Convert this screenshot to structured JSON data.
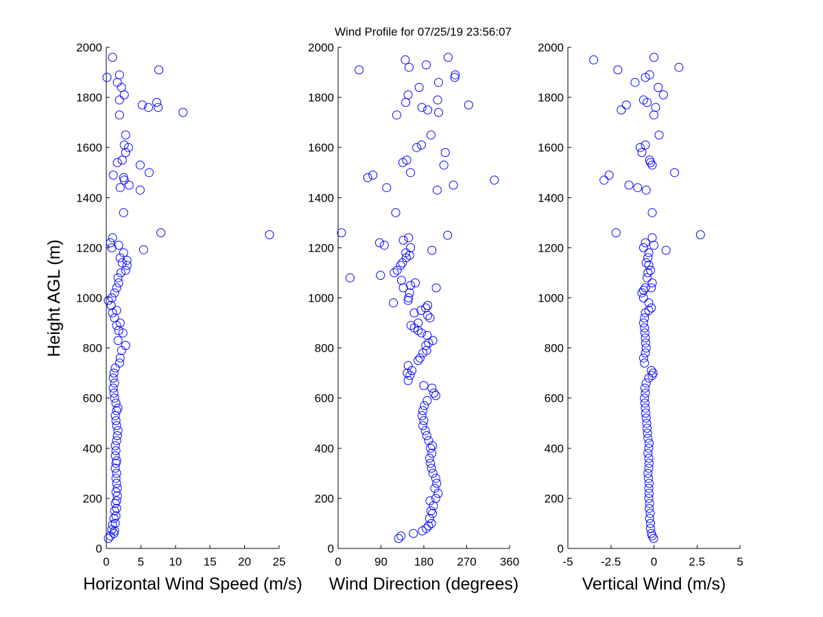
{
  "chart_data": [
    {
      "type": "scatter",
      "title": "Wind Profile for  07/25/19 23:56:07",
      "xlabel": "Horizontal Wind Speed (m/s)",
      "ylabel": "Height AGL (m)",
      "xlim": [
        0,
        25
      ],
      "ylim": [
        0,
        2000
      ],
      "xticks": [
        0,
        5,
        10,
        15,
        20,
        25
      ],
      "xtick_labels": [
        "0",
        "5",
        "10",
        "15",
        "20",
        "25"
      ],
      "yticks": [
        0,
        200,
        400,
        600,
        800,
        1000,
        1200,
        1400,
        1600,
        1800,
        2000
      ],
      "ytick_labels": [
        "0",
        "200",
        "400",
        "600",
        "800",
        "1000",
        "1200",
        "1400",
        "1600",
        "1800",
        "2000"
      ],
      "marker": "circle-open",
      "color": "#0000ff",
      "grid": false,
      "points": [
        [
          0.3,
          40
        ],
        [
          0.6,
          50
        ],
        [
          1.1,
          60
        ],
        [
          0.8,
          75
        ],
        [
          1.2,
          70
        ],
        [
          0.9,
          95
        ],
        [
          1.3,
          100
        ],
        [
          1.1,
          120
        ],
        [
          1.4,
          130
        ],
        [
          1.2,
          150
        ],
        [
          1.5,
          160
        ],
        [
          1.3,
          180
        ],
        [
          1.5,
          190
        ],
        [
          1.6,
          210
        ],
        [
          1.4,
          225
        ],
        [
          1.6,
          240
        ],
        [
          1.5,
          260
        ],
        [
          1.4,
          280
        ],
        [
          1.5,
          300
        ],
        [
          1.3,
          320
        ],
        [
          1.4,
          340
        ],
        [
          1.5,
          350
        ],
        [
          1.3,
          370
        ],
        [
          1.4,
          390
        ],
        [
          1.3,
          410
        ],
        [
          1.5,
          430
        ],
        [
          1.6,
          450
        ],
        [
          1.7,
          470
        ],
        [
          1.5,
          490
        ],
        [
          1.4,
          510
        ],
        [
          1.3,
          530
        ],
        [
          1.5,
          550
        ],
        [
          1.7,
          560
        ],
        [
          1.4,
          580
        ],
        [
          1.2,
          600
        ],
        [
          1.1,
          620
        ],
        [
          1.0,
          640
        ],
        [
          1.2,
          660
        ],
        [
          1.0,
          680
        ],
        [
          1.1,
          700
        ],
        [
          1.3,
          720
        ],
        [
          1.9,
          740
        ],
        [
          2.0,
          760
        ],
        [
          2.2,
          790
        ],
        [
          2.8,
          810
        ],
        [
          1.7,
          830
        ],
        [
          2.4,
          860
        ],
        [
          1.8,
          870
        ],
        [
          1.5,
          890
        ],
        [
          2.0,
          900
        ],
        [
          1.2,
          920
        ],
        [
          0.9,
          940
        ],
        [
          1.5,
          950
        ],
        [
          0.7,
          970
        ],
        [
          0.3,
          990
        ],
        [
          0.8,
          1000
        ],
        [
          1.2,
          1020
        ],
        [
          1.5,
          1040
        ],
        [
          1.8,
          1060
        ],
        [
          1.7,
          1080
        ],
        [
          2.1,
          1100
        ],
        [
          2.8,
          1110
        ],
        [
          3.0,
          1130
        ],
        [
          2.3,
          1140
        ],
        [
          3.0,
          1150
        ],
        [
          2.0,
          1160
        ],
        [
          2.5,
          1180
        ],
        [
          1.8,
          1210
        ],
        [
          0.8,
          1200
        ],
        [
          0.6,
          1220
        ],
        [
          0.9,
          1240
        ],
        [
          23.6,
          1252
        ],
        [
          7.9,
          1260
        ],
        [
          5.4,
          1192
        ],
        [
          2.5,
          1340
        ],
        [
          4.9,
          1430
        ],
        [
          2.0,
          1440
        ],
        [
          3.3,
          1450
        ],
        [
          2.6,
          1470
        ],
        [
          2.5,
          1480
        ],
        [
          1.0,
          1490
        ],
        [
          6.2,
          1500
        ],
        [
          4.9,
          1530
        ],
        [
          1.6,
          1540
        ],
        [
          2.3,
          1550
        ],
        [
          2.8,
          1580
        ],
        [
          3.2,
          1600
        ],
        [
          2.6,
          1610
        ],
        [
          2.8,
          1650
        ],
        [
          1.9,
          1730
        ],
        [
          5.2,
          1770
        ],
        [
          6.1,
          1760
        ],
        [
          7.5,
          1760
        ],
        [
          11.1,
          1740
        ],
        [
          7.3,
          1780
        ],
        [
          1.9,
          1790
        ],
        [
          2.6,
          1810
        ],
        [
          2.2,
          1840
        ],
        [
          1.6,
          1860
        ],
        [
          1.9,
          1890
        ],
        [
          0.1,
          1880
        ],
        [
          7.6,
          1910
        ],
        [
          0.9,
          1960
        ]
      ]
    },
    {
      "type": "scatter",
      "title": "",
      "xlabel": "Wind Direction (degrees)",
      "ylabel": "",
      "xlim": [
        0,
        360
      ],
      "ylim": [
        0,
        2000
      ],
      "xticks": [
        0,
        90,
        180,
        270,
        360
      ],
      "xtick_labels": [
        "0",
        "90",
        "180",
        "270",
        "360"
      ],
      "yticks": [
        0,
        200,
        400,
        600,
        800,
        1000,
        1200,
        1400,
        1600,
        1800,
        2000
      ],
      "ytick_labels": [
        "0",
        "200",
        "400",
        "600",
        "800",
        "1000",
        "1200",
        "1400",
        "1600",
        "1800",
        "2000"
      ],
      "marker": "circle-open",
      "color": "#0000ff",
      "grid": false,
      "points": [
        [
          127,
          40
        ],
        [
          132,
          50
        ],
        [
          158,
          60
        ],
        [
          177,
          70
        ],
        [
          185,
          80
        ],
        [
          190,
          90
        ],
        [
          196,
          100
        ],
        [
          192,
          120
        ],
        [
          198,
          140
        ],
        [
          195,
          150
        ],
        [
          200,
          170
        ],
        [
          193,
          190
        ],
        [
          205,
          200
        ],
        [
          210,
          220
        ],
        [
          203,
          240
        ],
        [
          207,
          260
        ],
        [
          205,
          280
        ],
        [
          199,
          300
        ],
        [
          196,
          320
        ],
        [
          194,
          340
        ],
        [
          192,
          360
        ],
        [
          197,
          380
        ],
        [
          194,
          400
        ],
        [
          198,
          410
        ],
        [
          190,
          430
        ],
        [
          186,
          450
        ],
        [
          183,
          470
        ],
        [
          178,
          490
        ],
        [
          180,
          510
        ],
        [
          176,
          530
        ],
        [
          178,
          550
        ],
        [
          181,
          570
        ],
        [
          187,
          590
        ],
        [
          205,
          610
        ],
        [
          201,
          620
        ],
        [
          197,
          640
        ],
        [
          180,
          650
        ],
        [
          147,
          670
        ],
        [
          151,
          690
        ],
        [
          145,
          700
        ],
        [
          155,
          710
        ],
        [
          147,
          730
        ],
        [
          168,
          750
        ],
        [
          172,
          760
        ],
        [
          178,
          780
        ],
        [
          186,
          790
        ],
        [
          184,
          810
        ],
        [
          190,
          820
        ],
        [
          199,
          830
        ],
        [
          187,
          850
        ],
        [
          175,
          860
        ],
        [
          168,
          870
        ],
        [
          160,
          880
        ],
        [
          153,
          890
        ],
        [
          168,
          900
        ],
        [
          193,
          920
        ],
        [
          188,
          930
        ],
        [
          160,
          940
        ],
        [
          174,
          950
        ],
        [
          184,
          960
        ],
        [
          188,
          970
        ],
        [
          147,
          990
        ],
        [
          116,
          980
        ],
        [
          148,
          1000
        ],
        [
          150,
          1020
        ],
        [
          137,
          1040
        ],
        [
          206,
          1040
        ],
        [
          152,
          1050
        ],
        [
          162,
          1060
        ],
        [
          133,
          1070
        ],
        [
          25,
          1080
        ],
        [
          89,
          1090
        ],
        [
          118,
          1100
        ],
        [
          124,
          1110
        ],
        [
          131,
          1130
        ],
        [
          135,
          1140
        ],
        [
          143,
          1160
        ],
        [
          150,
          1170
        ],
        [
          142,
          1180
        ],
        [
          152,
          1200
        ],
        [
          197,
          1190
        ],
        [
          97,
          1210
        ],
        [
          87,
          1220
        ],
        [
          137,
          1230
        ],
        [
          148,
          1240
        ],
        [
          230,
          1250
        ],
        [
          7,
          1260
        ],
        [
          121,
          1340
        ],
        [
          208,
          1430
        ],
        [
          242,
          1450
        ],
        [
          328,
          1470
        ],
        [
          62,
          1480
        ],
        [
          73,
          1490
        ],
        [
          152,
          1500
        ],
        [
          102,
          1440
        ],
        [
          222,
          1530
        ],
        [
          136,
          1540
        ],
        [
          144,
          1550
        ],
        [
          225,
          1580
        ],
        [
          165,
          1600
        ],
        [
          175,
          1610
        ],
        [
          195,
          1650
        ],
        [
          123,
          1730
        ],
        [
          211,
          1740
        ],
        [
          188,
          1750
        ],
        [
          176,
          1760
        ],
        [
          274,
          1770
        ],
        [
          142,
          1780
        ],
        [
          209,
          1790
        ],
        [
          147,
          1810
        ],
        [
          170,
          1840
        ],
        [
          211,
          1860
        ],
        [
          245,
          1880
        ],
        [
          246,
          1890
        ],
        [
          44,
          1910
        ],
        [
          149,
          1920
        ],
        [
          185,
          1930
        ],
        [
          141,
          1950
        ],
        [
          231,
          1960
        ]
      ]
    },
    {
      "type": "scatter",
      "title": "",
      "xlabel": "Vertical Wind (m/s)",
      "ylabel": "",
      "xlim": [
        -5,
        5
      ],
      "ylim": [
        0,
        2000
      ],
      "xticks": [
        -5,
        -2.5,
        0,
        2.5,
        5
      ],
      "xtick_labels": [
        "-5",
        "-2.5",
        "0",
        "2.5",
        "5"
      ],
      "yticks": [
        0,
        200,
        400,
        600,
        800,
        1000,
        1200,
        1400,
        1600,
        1800,
        2000
      ],
      "ytick_labels": [
        "0",
        "200",
        "400",
        "600",
        "800",
        "1000",
        "1200",
        "1400",
        "1600",
        "1800",
        "2000"
      ],
      "marker": "circle-open",
      "color": "#0000ff",
      "grid": false,
      "points": [
        [
          -0.02,
          40
        ],
        [
          -0.1,
          50
        ],
        [
          -0.15,
          60
        ],
        [
          -0.2,
          80
        ],
        [
          -0.2,
          100
        ],
        [
          -0.25,
          120
        ],
        [
          -0.22,
          140
        ],
        [
          -0.28,
          160
        ],
        [
          -0.25,
          180
        ],
        [
          -0.3,
          200
        ],
        [
          -0.28,
          220
        ],
        [
          -0.3,
          240
        ],
        [
          -0.28,
          260
        ],
        [
          -0.32,
          280
        ],
        [
          -0.35,
          300
        ],
        [
          -0.3,
          320
        ],
        [
          -0.28,
          340
        ],
        [
          -0.3,
          360
        ],
        [
          -0.35,
          380
        ],
        [
          -0.3,
          400
        ],
        [
          -0.28,
          420
        ],
        [
          -0.35,
          440
        ],
        [
          -0.38,
          460
        ],
        [
          -0.4,
          480
        ],
        [
          -0.42,
          500
        ],
        [
          -0.45,
          520
        ],
        [
          -0.48,
          540
        ],
        [
          -0.5,
          560
        ],
        [
          -0.52,
          580
        ],
        [
          -0.55,
          600
        ],
        [
          -0.5,
          620
        ],
        [
          -0.52,
          640
        ],
        [
          -0.45,
          660
        ],
        [
          -0.3,
          680
        ],
        [
          -0.1,
          690
        ],
        [
          -0.05,
          700
        ],
        [
          -0.15,
          710
        ],
        [
          -0.55,
          740
        ],
        [
          -0.6,
          760
        ],
        [
          -0.5,
          780
        ],
        [
          -0.45,
          800
        ],
        [
          -0.48,
          820
        ],
        [
          -0.5,
          840
        ],
        [
          -0.52,
          860
        ],
        [
          -0.55,
          880
        ],
        [
          -0.6,
          900
        ],
        [
          -0.55,
          920
        ],
        [
          -0.5,
          940
        ],
        [
          -0.3,
          950
        ],
        [
          -0.15,
          960
        ],
        [
          -0.3,
          980
        ],
        [
          -0.6,
          1000
        ],
        [
          -0.7,
          1020
        ],
        [
          -0.6,
          1030
        ],
        [
          -0.5,
          1040
        ],
        [
          -0.15,
          1040
        ],
        [
          -0.1,
          1060
        ],
        [
          -0.4,
          1080
        ],
        [
          -0.35,
          1100
        ],
        [
          -0.2,
          1110
        ],
        [
          -0.3,
          1130
        ],
        [
          -0.45,
          1140
        ],
        [
          -0.35,
          1160
        ],
        [
          -0.3,
          1180
        ],
        [
          -0.6,
          1200
        ],
        [
          0.0,
          1210
        ],
        [
          0.7,
          1190
        ],
        [
          -0.5,
          1220
        ],
        [
          -0.1,
          1240
        ],
        [
          2.7,
          1252
        ],
        [
          -2.2,
          1260
        ],
        [
          -0.1,
          1340
        ],
        [
          -0.45,
          1430
        ],
        [
          -0.95,
          1440
        ],
        [
          -1.45,
          1450
        ],
        [
          -2.9,
          1470
        ],
        [
          -2.6,
          1490
        ],
        [
          1.2,
          1500
        ],
        [
          -0.1,
          1530
        ],
        [
          -0.2,
          1540
        ],
        [
          -0.25,
          1550
        ],
        [
          -0.7,
          1580
        ],
        [
          -0.8,
          1600
        ],
        [
          -0.5,
          1610
        ],
        [
          0.3,
          1650
        ],
        [
          0.0,
          1730
        ],
        [
          0.1,
          1760
        ],
        [
          -1.9,
          1750
        ],
        [
          -1.6,
          1770
        ],
        [
          -0.4,
          1780
        ],
        [
          -0.6,
          1790
        ],
        [
          0.55,
          1810
        ],
        [
          0.25,
          1840
        ],
        [
          -1.1,
          1860
        ],
        [
          -0.5,
          1880
        ],
        [
          -0.25,
          1890
        ],
        [
          -2.1,
          1910
        ],
        [
          1.45,
          1920
        ],
        [
          -3.5,
          1950
        ],
        [
          0.0,
          1960
        ]
      ]
    }
  ]
}
